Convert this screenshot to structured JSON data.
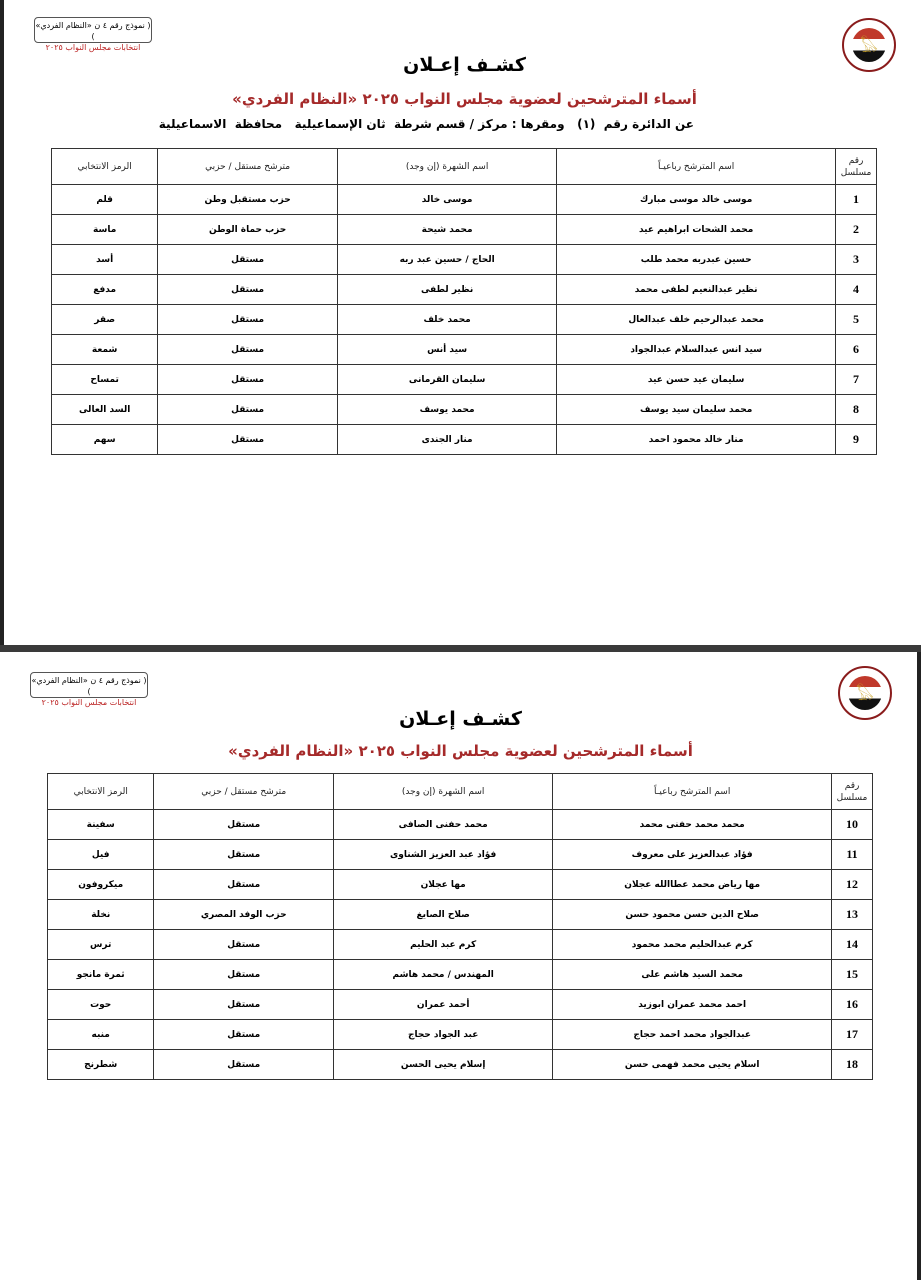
{
  "stamp": {
    "line1": "( نموذج رقم ٤ ن «النظام الفردي» )",
    "line2": "انتخابات مجلس النواب ٢٠٢٥"
  },
  "title": "كشـف إعـلان",
  "subtitle": "أسماء المترشحين لعضوية مجلس النواب ٢٠٢٥ «النظام الفردي»",
  "district": "عن الدائرة رقم  (١)   ومقرها : مركز / قسم شرطة  ثان الإسماعيلية   محافظة  الاسماعيلية",
  "headers": {
    "serial": "رقم مسلسل",
    "full_name": "اسم المترشح رباعيـاً",
    "nickname": "اسم الشهرة (إن وجد)",
    "type": "مترشح مستقل / حزبي",
    "symbol": "الرمز الانتخابي"
  },
  "logo_color": "#8a1c1c",
  "page1_rows": [
    {
      "n": "1",
      "name": "موسى خالد موسى مبارك",
      "nick": "موسى خالد",
      "type": "حزب مستقبل وطن",
      "symbol": "قلم"
    },
    {
      "n": "2",
      "name": "محمد الشحات ابراهيم عيد",
      "nick": "محمد شيحة",
      "type": "حزب حماة الوطن",
      "symbol": "ماسة"
    },
    {
      "n": "3",
      "name": "حسين عبدربه محمد طلب",
      "nick": "الحاج / حسين عبد ربه",
      "type": "مستقل",
      "symbol": "أسد"
    },
    {
      "n": "4",
      "name": "نظير عبدالنعيم لطفى محمد",
      "nick": "نظير لطفى",
      "type": "مستقل",
      "symbol": "مدفع"
    },
    {
      "n": "5",
      "name": "محمد عبدالرحيم خلف عبدالعال",
      "nick": "محمد خلف",
      "type": "مستقل",
      "symbol": "صقر"
    },
    {
      "n": "6",
      "name": "سيد انس عبدالسلام عبدالجواد",
      "nick": "سيد أنس",
      "type": "مستقل",
      "symbol": "شمعة"
    },
    {
      "n": "7",
      "name": "سليمان عيد حسن عيد",
      "nick": "سليمان القرمانى",
      "type": "مستقل",
      "symbol": "تمساح"
    },
    {
      "n": "8",
      "name": "محمد سليمان سيد يوسف",
      "nick": "محمد يوسف",
      "type": "مستقل",
      "symbol": "السد العالى"
    },
    {
      "n": "9",
      "name": "منار خالد محمود احمد",
      "nick": "منار الجندى",
      "type": "مستقل",
      "symbol": "سهم"
    }
  ],
  "page2_rows": [
    {
      "n": "10",
      "name": "محمد محمد حفنى محمد",
      "nick": "محمد حفنى الصافى",
      "type": "مستقل",
      "symbol": "سفينة"
    },
    {
      "n": "11",
      "name": "فؤاد عبدالعزيز على معروف",
      "nick": "فؤاد عبد العزيز الشناوى",
      "type": "مستقل",
      "symbol": "فيل"
    },
    {
      "n": "12",
      "name": "مها رياض محمد عطاالله عجلان",
      "nick": "مها عجلان",
      "type": "مستقل",
      "symbol": "ميكروفون"
    },
    {
      "n": "13",
      "name": "صلاح الدين حسن محمود حسن",
      "nick": "صلاح الصايغ",
      "type": "حزب الوفد المصري",
      "symbol": "نخلة"
    },
    {
      "n": "14",
      "name": "كرم عبدالحليم محمد محمود",
      "nick": "كرم عبد الحليم",
      "type": "مستقل",
      "symbol": "ترس"
    },
    {
      "n": "15",
      "name": "محمد السيد هاشم على",
      "nick": "المهندس / محمد هاشم",
      "type": "مستقل",
      "symbol": "ثمرة مانجو"
    },
    {
      "n": "16",
      "name": "احمد محمد عمران ابوزيد",
      "nick": "أحمد عمران",
      "type": "مستقل",
      "symbol": "حوت"
    },
    {
      "n": "17",
      "name": "عبدالجواد محمد احمد حجاج",
      "nick": "عبد الجواد حجاج",
      "type": "مستقل",
      "symbol": "منبه"
    },
    {
      "n": "18",
      "name": "اسلام يحيى محمد فهمى حسن",
      "nick": "إسلام يحيى الحسن",
      "type": "مستقل",
      "symbol": "شطرنج"
    }
  ]
}
